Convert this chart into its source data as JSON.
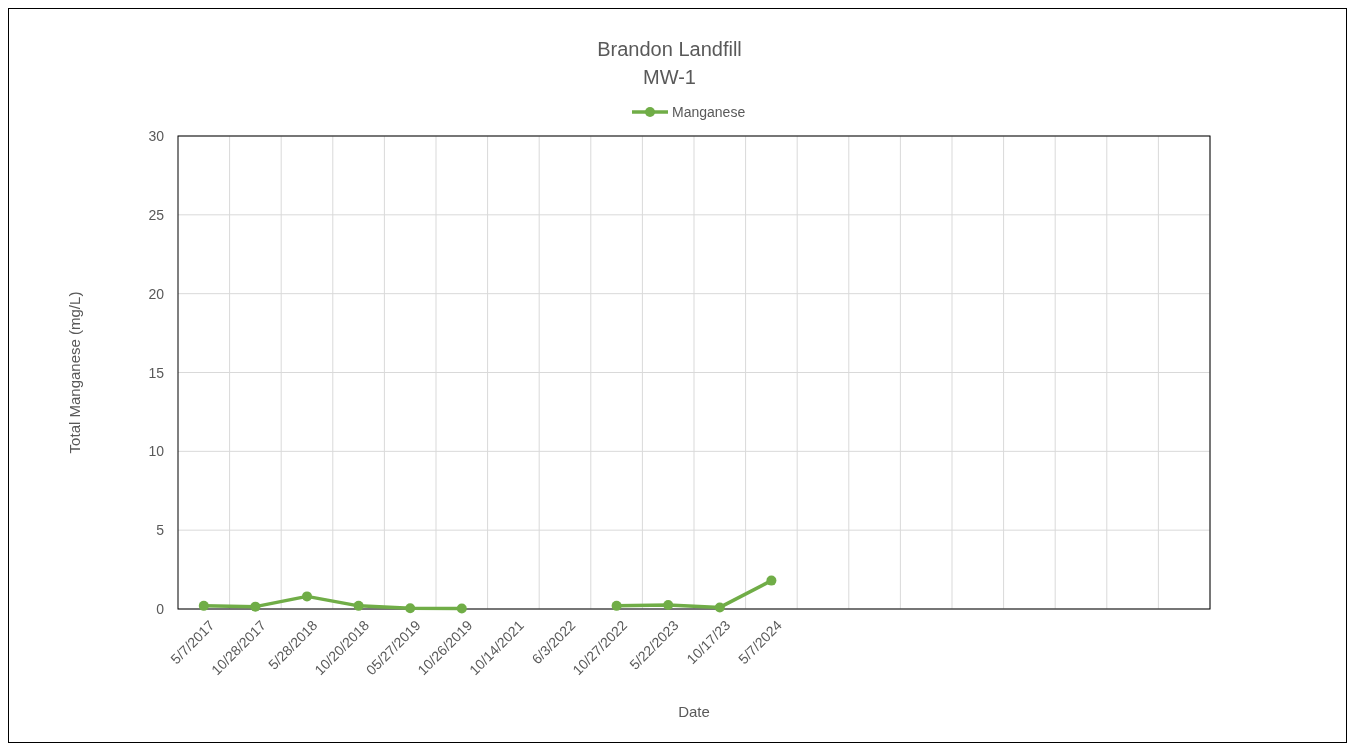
{
  "chart_data": {
    "type": "line",
    "title": "Brandon Landfill",
    "subtitle": "MW-1",
    "xlabel": "Date",
    "ylabel": "Total Manganese (mg/L)",
    "categories": [
      "5/7/2017",
      "10/28/2017",
      "5/28/2018",
      "10/20/2018",
      "05/27/2019",
      "10/26/2019",
      "10/14/2021",
      "6/3/2022",
      "10/27/2022",
      "5/22/2023",
      "10/17/23",
      "5/7/2024",
      null,
      null,
      null,
      null,
      null,
      null,
      null,
      null
    ],
    "series": [
      {
        "name": "Manganese",
        "color": "#70ad47",
        "values": [
          0.2,
          0.15,
          0.8,
          0.2,
          0.05,
          0.03,
          null,
          null,
          0.2,
          0.25,
          0.1,
          1.8,
          null,
          null,
          null,
          null,
          null,
          null,
          null,
          null
        ]
      }
    ],
    "ylim": [
      0,
      30
    ],
    "yticks": [
      0,
      5,
      10,
      15,
      20,
      25,
      30
    ],
    "grid": true,
    "legend": "top",
    "marker": "circle",
    "line_style": "solid"
  }
}
